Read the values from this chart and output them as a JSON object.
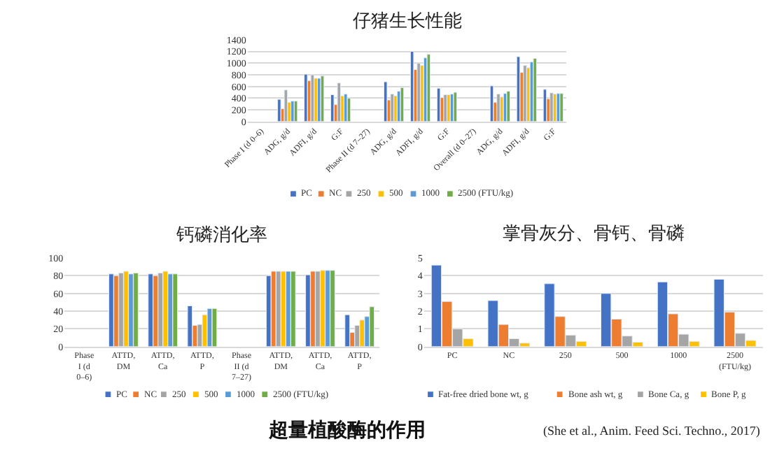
{
  "chart_data": [
    {
      "type": "bar",
      "title": "仔猪生长性能",
      "categories": [
        "Phase I (d 0–6)",
        "ADG, g/d",
        "ADFI, g/d",
        "G:F",
        "Phase II (d 7–27)",
        "ADG, g/d",
        "ADFI, g/d",
        "G:F",
        "Overall (d 0–27)",
        "ADG, g/d",
        "ADFI, g/d",
        "G:F"
      ],
      "series": [
        {
          "name": "PC",
          "color": "#4472c4",
          "values": [
            null,
            380,
            810,
            460,
            null,
            680,
            1200,
            570,
            null,
            610,
            1110,
            550
          ]
        },
        {
          "name": "NC",
          "color": "#ed7d31",
          "values": [
            null,
            220,
            700,
            290,
            null,
            370,
            890,
            410,
            null,
            330,
            840,
            390
          ]
        },
        {
          "name": "250",
          "color": "#a5a5a5",
          "values": [
            null,
            540,
            800,
            660,
            null,
            470,
            1000,
            460,
            null,
            470,
            960,
            490
          ]
        },
        {
          "name": "500",
          "color": "#ffc000",
          "values": [
            null,
            330,
            740,
            440,
            null,
            440,
            960,
            460,
            null,
            420,
            920,
            470
          ]
        },
        {
          "name": "1000",
          "color": "#5b9bd5",
          "values": [
            null,
            350,
            740,
            470,
            null,
            520,
            1090,
            470,
            null,
            480,
            1020,
            480
          ]
        },
        {
          "name": "2500 (FTU/kg)",
          "color": "#70ad47",
          "values": [
            null,
            350,
            780,
            400,
            null,
            580,
            1150,
            500,
            null,
            520,
            1080,
            480
          ]
        }
      ],
      "ylim": [
        0,
        1400
      ],
      "yticks": [
        0,
        200,
        400,
        600,
        800,
        1000,
        1200,
        1400
      ],
      "grid": "y",
      "legend": "bottom"
    },
    {
      "type": "bar",
      "title": "钙磷消化率",
      "categories": [
        "Phase I (d 0–6)",
        "ATTD, DM",
        "ATTD, Ca",
        "ATTD, P",
        "Phase II (d 7–27)",
        "ATTD, DM",
        "ATTD, Ca",
        "ATTD, P"
      ],
      "series": [
        {
          "name": "PC",
          "color": "#4472c4",
          "values": [
            null,
            82,
            82,
            46,
            null,
            80,
            81,
            36
          ]
        },
        {
          "name": "NC",
          "color": "#ed7d31",
          "values": [
            null,
            80,
            80,
            24,
            null,
            85,
            85,
            16
          ]
        },
        {
          "name": "250",
          "color": "#a5a5a5",
          "values": [
            null,
            83,
            83,
            25,
            null,
            85,
            85,
            24
          ]
        },
        {
          "name": "500",
          "color": "#ffc000",
          "values": [
            null,
            85,
            85,
            36,
            null,
            85,
            86,
            30
          ]
        },
        {
          "name": "1000",
          "color": "#5b9bd5",
          "values": [
            null,
            82,
            82,
            43,
            null,
            85,
            86,
            34
          ]
        },
        {
          "name": "2500 (FTU/kg)",
          "color": "#70ad47",
          "values": [
            null,
            83,
            82,
            43,
            null,
            85,
            86,
            45
          ]
        }
      ],
      "ylim": [
        0,
        100
      ],
      "yticks": [
        0,
        20,
        40,
        60,
        80,
        100
      ],
      "grid": "y",
      "legend": "bottom"
    },
    {
      "type": "bar",
      "title": "掌骨灰分、骨钙、骨磷",
      "categories": [
        "PC",
        "NC",
        "250",
        "500",
        "1000",
        "2500 (FTU/kg)"
      ],
      "series": [
        {
          "name": "Fat-free dried bone wt, g",
          "color": "#4472c4",
          "values": [
            4.6,
            2.6,
            3.55,
            3.0,
            3.65,
            3.8
          ]
        },
        {
          "name": "Bone ash wt, g",
          "color": "#ed7d31",
          "values": [
            2.55,
            1.25,
            1.7,
            1.55,
            1.85,
            1.95
          ]
        },
        {
          "name": "Bone Ca, g",
          "color": "#a5a5a5",
          "values": [
            1.0,
            0.45,
            0.65,
            0.6,
            0.7,
            0.75
          ]
        },
        {
          "name": "Bone P, g",
          "color": "#ffc000",
          "values": [
            0.45,
            0.2,
            0.3,
            0.25,
            0.3,
            0.35
          ]
        }
      ],
      "ylim": [
        0,
        5
      ],
      "yticks": [
        0,
        1,
        2,
        3,
        4,
        5
      ],
      "grid": "y",
      "legend": "bottom"
    },
    {
      "type": "other",
      "title": "超量植酸酶的作用",
      "annotations": [
        "(She et al., Anim. Feed Sci. Techno., 2017)"
      ]
    }
  ]
}
